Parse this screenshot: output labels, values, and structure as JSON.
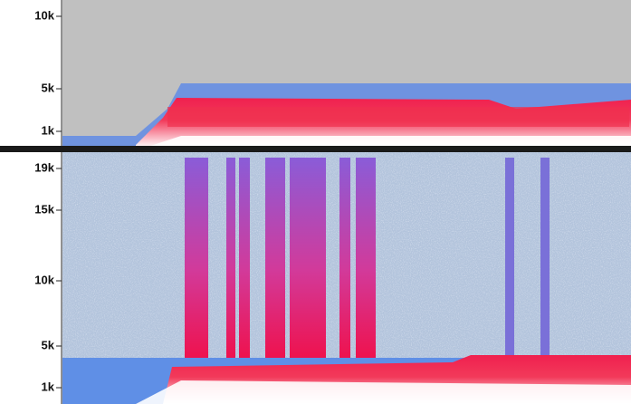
{
  "panels": [
    {
      "ticks": [
        "10k",
        "5k",
        "1k"
      ]
    },
    {
      "ticks": [
        "19k",
        "15k",
        "10k",
        "5k",
        "1k"
      ]
    }
  ]
}
